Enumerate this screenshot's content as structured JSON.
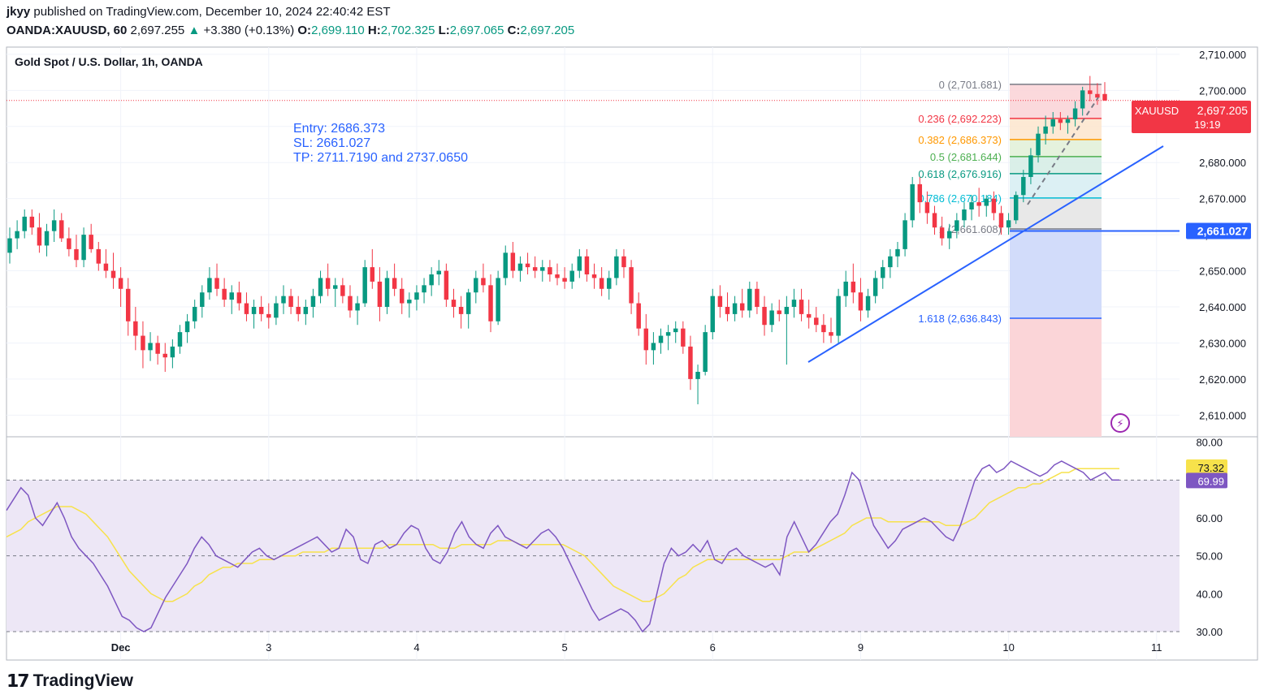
{
  "header": {
    "author": "jkyy",
    "published_line": "published on TradingView.com, December 10, 2024 22:40:42 EST",
    "symbol": "OANDA:XAUUSD, 60",
    "last": "2,697.255",
    "change": "+3.380 (+0.13%)",
    "o_label": "O:",
    "o": "2,699.110",
    "h_label": "H:",
    "h": "2,702.325",
    "l_label": "L:",
    "l": "2,697.065",
    "c_label": "C:",
    "c": "2,697.205"
  },
  "footer": {
    "brand": "TradingView"
  },
  "colors": {
    "up": "#089981",
    "down": "#f23645",
    "trend": "#2962ff",
    "rsi": "#7e57c2",
    "rsi_ma": "#f7e24b",
    "rsi_band": "#ede7f6"
  },
  "chart_data": [
    {
      "type": "candlestick",
      "title": "Gold Spot / U.S. Dollar, 1h, OANDA",
      "x_ticks": [
        "Dec",
        "3",
        "4",
        "5",
        "6",
        "9",
        "10",
        "11"
      ],
      "y_ticks": [
        "2,710.000",
        "2,700.000",
        "2,690.000",
        "2,680.000",
        "2,670.000",
        "2,660.000",
        "2,650.000",
        "2,640.000",
        "2,630.000",
        "2,620.000",
        "2,610.000"
      ],
      "ylim": [
        2604,
        2712
      ],
      "price_label": {
        "symbol": "XAUUSD",
        "price": "2,697.205",
        "countdown": "19:19",
        "value": 2697.205
      },
      "sl_label": {
        "price": "2,661.027",
        "value": 2661.027
      },
      "annotation": [
        "Entry: 2686.373",
        "SL: 2661.027",
        "TP: 2711.7190 and 2737.0650"
      ],
      "fib_levels": [
        {
          "label": "0 (2,701.681)",
          "value": 2701.681,
          "color": "#787b86"
        },
        {
          "label": "0.236 (2,692.223)",
          "value": 2692.223,
          "color": "#f23645"
        },
        {
          "label": "0.382 (2,686.373)",
          "value": 2686.373,
          "color": "#ff9800"
        },
        {
          "label": "0.5 (2,681.644)",
          "value": 2681.644,
          "color": "#4caf50"
        },
        {
          "label": "0.618 (2,676.916)",
          "value": 2676.916,
          "color": "#089981"
        },
        {
          "label": "0.786 (2,670.184)",
          "value": 2670.184,
          "color": "#00bcd4"
        },
        {
          "label": "1 (2,661.608)",
          "value": 2661.608,
          "color": "#787b86"
        },
        {
          "label": "1.618 (2,636.843)",
          "value": 2636.843,
          "color": "#2962ff"
        }
      ],
      "trendline": [
        [
          8.9,
          2625.5
        ],
        [
          10.45,
          2687
        ]
      ],
      "ohlc": [
        [
          2655,
          2662,
          2652,
          2659
        ],
        [
          2659,
          2664,
          2656,
          2661
        ],
        [
          2661,
          2667,
          2659,
          2665
        ],
        [
          2665,
          2667,
          2660,
          2662
        ],
        [
          2662,
          2666,
          2655,
          2657
        ],
        [
          2657,
          2663,
          2654,
          2661
        ],
        [
          2661,
          2667,
          2658,
          2664
        ],
        [
          2664,
          2666,
          2658,
          2659
        ],
        [
          2659,
          2662,
          2654,
          2656
        ],
        [
          2656,
          2660,
          2651,
          2653
        ],
        [
          2653,
          2662,
          2651,
          2660
        ],
        [
          2660,
          2663,
          2655,
          2656
        ],
        [
          2656,
          2658,
          2650,
          2652
        ],
        [
          2652,
          2656,
          2648,
          2650
        ],
        [
          2650,
          2655,
          2645,
          2648
        ],
        [
          2648,
          2651,
          2640,
          2645
        ],
        [
          2645,
          2648,
          2632,
          2636
        ],
        [
          2636,
          2640,
          2628,
          2632
        ],
        [
          2632,
          2636,
          2623,
          2628
        ],
        [
          2628,
          2633,
          2625,
          2630
        ],
        [
          2630,
          2632,
          2624,
          2627
        ],
        [
          2627,
          2630,
          2622,
          2626
        ],
        [
          2626,
          2631,
          2623,
          2629
        ],
        [
          2629,
          2635,
          2627,
          2633
        ],
        [
          2633,
          2638,
          2630,
          2636
        ],
        [
          2636,
          2642,
          2634,
          2640
        ],
        [
          2640,
          2646,
          2637,
          2644
        ],
        [
          2644,
          2651,
          2642,
          2648
        ],
        [
          2648,
          2652,
          2643,
          2645
        ],
        [
          2645,
          2648,
          2640,
          2642
        ],
        [
          2642,
          2646,
          2638,
          2644
        ],
        [
          2644,
          2647,
          2639,
          2641
        ],
        [
          2641,
          2644,
          2636,
          2638
        ],
        [
          2638,
          2642,
          2634,
          2640
        ],
        [
          2640,
          2643,
          2636,
          2638
        ],
        [
          2638,
          2641,
          2634,
          2637
        ],
        [
          2637,
          2643,
          2635,
          2641
        ],
        [
          2641,
          2646,
          2638,
          2643
        ],
        [
          2643,
          2645,
          2638,
          2640
        ],
        [
          2640,
          2643,
          2636,
          2638
        ],
        [
          2638,
          2642,
          2635,
          2640
        ],
        [
          2640,
          2645,
          2637,
          2643
        ],
        [
          2643,
          2650,
          2641,
          2648
        ],
        [
          2648,
          2652,
          2643,
          2645
        ],
        [
          2645,
          2648,
          2640,
          2646
        ],
        [
          2646,
          2648,
          2641,
          2643
        ],
        [
          2643,
          2646,
          2637,
          2639
        ],
        [
          2639,
          2643,
          2635,
          2641
        ],
        [
          2641,
          2653,
          2640,
          2651
        ],
        [
          2651,
          2656,
          2645,
          2647
        ],
        [
          2647,
          2651,
          2636,
          2640
        ],
        [
          2640,
          2650,
          2638,
          2648
        ],
        [
          2648,
          2652,
          2643,
          2645
        ],
        [
          2645,
          2648,
          2638,
          2641
        ],
        [
          2641,
          2644,
          2637,
          2642
        ],
        [
          2642,
          2646,
          2639,
          2644
        ],
        [
          2644,
          2648,
          2641,
          2646
        ],
        [
          2646,
          2651,
          2643,
          2649
        ],
        [
          2649,
          2653,
          2646,
          2650
        ],
        [
          2650,
          2652,
          2640,
          2642
        ],
        [
          2642,
          2645,
          2637,
          2640
        ],
        [
          2640,
          2643,
          2634,
          2638
        ],
        [
          2638,
          2645,
          2634,
          2644
        ],
        [
          2644,
          2650,
          2641,
          2648
        ],
        [
          2648,
          2652,
          2644,
          2646
        ],
        [
          2646,
          2649,
          2633,
          2636
        ],
        [
          2636,
          2650,
          2635,
          2648
        ],
        [
          2648,
          2657,
          2646,
          2655
        ],
        [
          2655,
          2658,
          2648,
          2650
        ],
        [
          2650,
          2654,
          2647,
          2652
        ],
        [
          2652,
          2655,
          2649,
          2651
        ],
        [
          2651,
          2654,
          2648,
          2650
        ],
        [
          2650,
          2653,
          2647,
          2651
        ],
        [
          2651,
          2653,
          2647,
          2649
        ],
        [
          2649,
          2652,
          2646,
          2648
        ],
        [
          2648,
          2651,
          2645,
          2647
        ],
        [
          2647,
          2652,
          2645,
          2650
        ],
        [
          2650,
          2656,
          2648,
          2654
        ],
        [
          2654,
          2656,
          2647,
          2649
        ],
        [
          2649,
          2652,
          2645,
          2648
        ],
        [
          2648,
          2651,
          2643,
          2645
        ],
        [
          2645,
          2650,
          2642,
          2648
        ],
        [
          2648,
          2656,
          2646,
          2654
        ],
        [
          2654,
          2656,
          2648,
          2651
        ],
        [
          2651,
          2653,
          2638,
          2641
        ],
        [
          2641,
          2644,
          2632,
          2634
        ],
        [
          2634,
          2638,
          2624,
          2628
        ],
        [
          2628,
          2633,
          2624,
          2630
        ],
        [
          2630,
          2634,
          2627,
          2632
        ],
        [
          2632,
          2635,
          2628,
          2633
        ],
        [
          2633,
          2636,
          2630,
          2634
        ],
        [
          2634,
          2636,
          2627,
          2629
        ],
        [
          2629,
          2632,
          2617,
          2620
        ],
        [
          2620,
          2624,
          2613,
          2622
        ],
        [
          2622,
          2635,
          2621,
          2633
        ],
        [
          2633,
          2645,
          2631,
          2643
        ],
        [
          2643,
          2646,
          2637,
          2640
        ],
        [
          2640,
          2644,
          2636,
          2638
        ],
        [
          2638,
          2643,
          2636,
          2641
        ],
        [
          2641,
          2645,
          2637,
          2639
        ],
        [
          2639,
          2647,
          2637,
          2645
        ],
        [
          2645,
          2647,
          2638,
          2640
        ],
        [
          2640,
          2643,
          2632,
          2635
        ],
        [
          2635,
          2641,
          2633,
          2639
        ],
        [
          2639,
          2642,
          2636,
          2638
        ],
        [
          2638,
          2643,
          2624,
          2640
        ],
        [
          2640,
          2645,
          2637,
          2642
        ],
        [
          2642,
          2645,
          2636,
          2638
        ],
        [
          2638,
          2642,
          2634,
          2637
        ],
        [
          2637,
          2640,
          2633,
          2635
        ],
        [
          2635,
          2638,
          2630,
          2633
        ],
        [
          2633,
          2637,
          2630,
          2632
        ],
        [
          2632,
          2645,
          2630,
          2643
        ],
        [
          2643,
          2650,
          2640,
          2647
        ],
        [
          2647,
          2652,
          2641,
          2644
        ],
        [
          2644,
          2648,
          2636,
          2639
        ],
        [
          2639,
          2645,
          2637,
          2643
        ],
        [
          2643,
          2650,
          2641,
          2648
        ],
        [
          2648,
          2653,
          2645,
          2651
        ],
        [
          2651,
          2656,
          2648,
          2654
        ],
        [
          2654,
          2658,
          2651,
          2656
        ],
        [
          2656,
          2666,
          2654,
          2664
        ],
        [
          2664,
          2676,
          2662,
          2674
        ],
        [
          2674,
          2676,
          2666,
          2669
        ],
        [
          2669,
          2672,
          2663,
          2666
        ],
        [
          2666,
          2668,
          2660,
          2662
        ],
        [
          2662,
          2665,
          2657,
          2659
        ],
        [
          2659,
          2663,
          2656,
          2661
        ],
        [
          2661,
          2666,
          2659,
          2664
        ],
        [
          2664,
          2669,
          2662,
          2667
        ],
        [
          2667,
          2671,
          2664,
          2669
        ],
        [
          2669,
          2673,
          2665,
          2668
        ],
        [
          2668,
          2671,
          2665,
          2670
        ],
        [
          2670,
          2672,
          2664,
          2666
        ],
        [
          2666,
          2668,
          2660,
          2662
        ],
        [
          2662,
          2666,
          2660,
          2664
        ],
        [
          2664,
          2672,
          2663,
          2671
        ],
        [
          2671,
          2678,
          2669,
          2676
        ],
        [
          2676,
          2684,
          2674,
          2682
        ],
        [
          2682,
          2690,
          2680,
          2688
        ],
        [
          2688,
          2693,
          2685,
          2690
        ],
        [
          2690,
          2694,
          2688,
          2692
        ],
        [
          2692,
          2694,
          2689,
          2691
        ],
        [
          2691,
          2693,
          2688,
          2692
        ],
        [
          2692,
          2697,
          2690,
          2695
        ],
        [
          2695,
          2701,
          2693,
          2700
        ],
        [
          2700,
          2704,
          2697,
          2699
        ],
        [
          2699,
          2702,
          2696,
          2698
        ],
        [
          2699,
          2702.3,
          2697.1,
          2697.2
        ]
      ],
      "day_starts": {
        "Dec": 15,
        "3": 35,
        "4": 55,
        "5": 75,
        "6": 95,
        "9": 115,
        "10": 135,
        "11": 155
      }
    },
    {
      "type": "line",
      "title": "",
      "y_ticks": [
        "80.00",
        "60.00",
        "50.00",
        "40.00",
        "30.00"
      ],
      "ylim": [
        27,
        81
      ],
      "levels": [
        70,
        50,
        30
      ],
      "rsi_label": "69.99",
      "ma_label": "73.32",
      "rsi": [
        62,
        65,
        68,
        66,
        60,
        58,
        61,
        64,
        60,
        55,
        52,
        50,
        48,
        45,
        42,
        38,
        34,
        33,
        31,
        30,
        31,
        35,
        39,
        42,
        45,
        48,
        52,
        55,
        53,
        50,
        49,
        48,
        47,
        49,
        51,
        52,
        50,
        49,
        50,
        51,
        52,
        53,
        54,
        55,
        53,
        51,
        52,
        57,
        55,
        49,
        48,
        53,
        54,
        52,
        53,
        56,
        58,
        57,
        52,
        49,
        48,
        51,
        56,
        59,
        55,
        53,
        52,
        56,
        58,
        55,
        54,
        53,
        52,
        54,
        56,
        57,
        55,
        52,
        48,
        44,
        40,
        36,
        33,
        34,
        35,
        36,
        35,
        33,
        30,
        32,
        40,
        48,
        52,
        50,
        51,
        53,
        51,
        54,
        49,
        48,
        51,
        52,
        50,
        49,
        48,
        47,
        48,
        45,
        55,
        59,
        55,
        51,
        53,
        56,
        59,
        61,
        66,
        72,
        70,
        64,
        58,
        55,
        52,
        54,
        57,
        58,
        59,
        60,
        59,
        57,
        55,
        54,
        58,
        64,
        70,
        73,
        74,
        72,
        73,
        75,
        74,
        73,
        72,
        71,
        72,
        74,
        75,
        74,
        73,
        72,
        70,
        71,
        72,
        70,
        70
      ],
      "rsi_ma": [
        55,
        56,
        57,
        59,
        60,
        61,
        62,
        63,
        63,
        63,
        62,
        61,
        59,
        57,
        55,
        52,
        49,
        46,
        44,
        42,
        40,
        39,
        38,
        38,
        39,
        40,
        42,
        43,
        45,
        46,
        47,
        47,
        48,
        48,
        48,
        49,
        49,
        49,
        50,
        50,
        50,
        51,
        51,
        51,
        51,
        52,
        52,
        52,
        52,
        52,
        52,
        52,
        52,
        53,
        53,
        53,
        53,
        53,
        53,
        53,
        52,
        52,
        52,
        53,
        53,
        53,
        53,
        53,
        54,
        54,
        54,
        53,
        53,
        53,
        53,
        53,
        53,
        53,
        52,
        51,
        50,
        48,
        46,
        44,
        42,
        41,
        40,
        39,
        38,
        38,
        39,
        40,
        42,
        44,
        45,
        47,
        48,
        49,
        49,
        49,
        49,
        49,
        49,
        49,
        49,
        49,
        49,
        49,
        50,
        51,
        51,
        51,
        52,
        53,
        54,
        55,
        56,
        58,
        59,
        60,
        60,
        60,
        59,
        59,
        59,
        59,
        59,
        59,
        59,
        59,
        58,
        58,
        58,
        59,
        60,
        62,
        64,
        65,
        66,
        67,
        68,
        68,
        69,
        69,
        70,
        71,
        72,
        72,
        73,
        73,
        73,
        73,
        73,
        73,
        73
      ]
    }
  ]
}
